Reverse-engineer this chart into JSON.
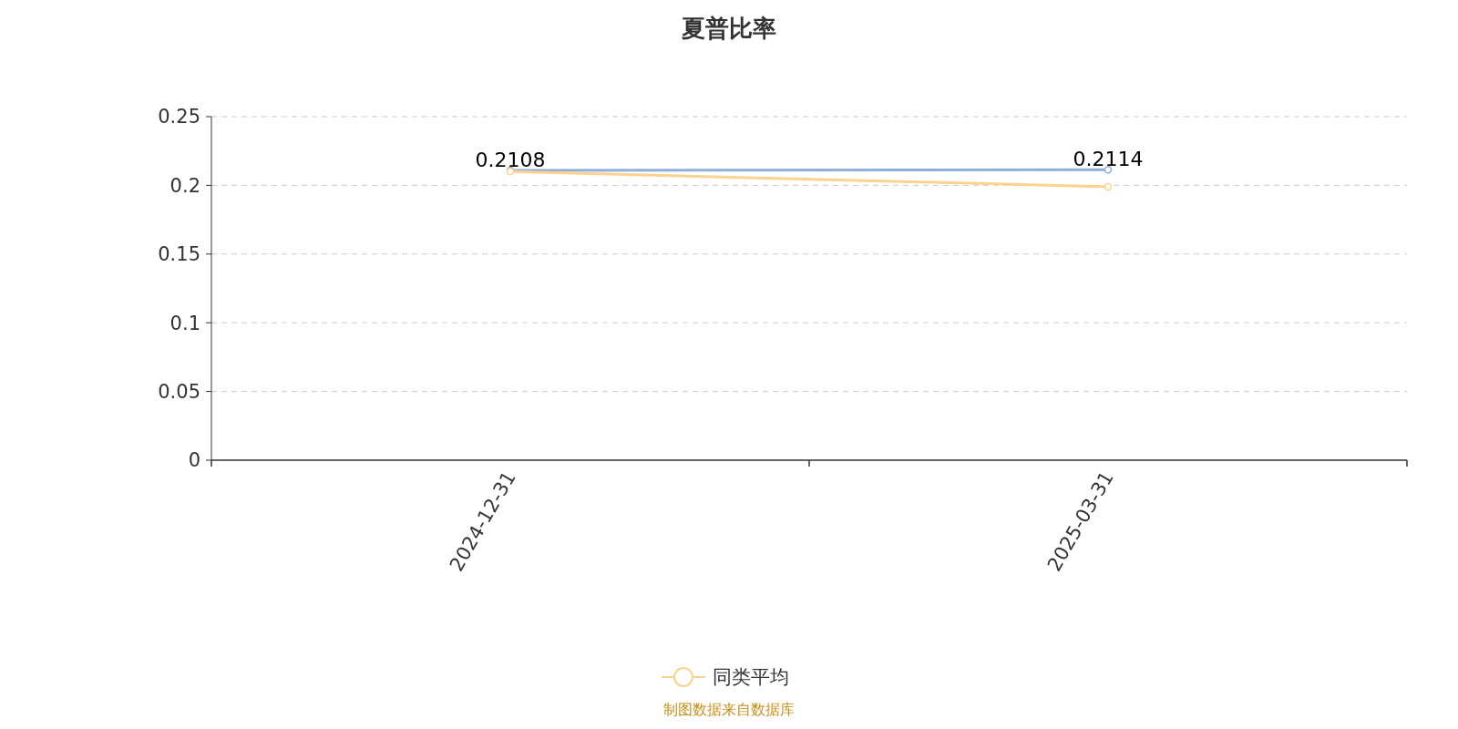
{
  "chart_data": {
    "type": "line",
    "title": "夏普比率",
    "categories": [
      "2024-12-31",
      "2025-03-31"
    ],
    "series": [
      {
        "color": "#8eaedc",
        "values": [
          0.2108,
          0.2114
        ],
        "value_labels": [
          "0.2108",
          "0.2114"
        ]
      },
      {
        "name": "同类平均",
        "color": "#fcd38e",
        "values": [
          0.21,
          0.199
        ]
      }
    ],
    "ylim": [
      0,
      0.25
    ],
    "yticks": [
      0,
      0.05,
      {
        "value": 0.1,
        "label": "0.1"
      },
      0.15,
      {
        "value": 0.2,
        "label": "0.2"
      },
      0.25
    ],
    "grid": "y",
    "legend": "bottom",
    "marker": "circle",
    "line_style": "solid",
    "annotations": [
      "制图数据来自数据库"
    ]
  }
}
